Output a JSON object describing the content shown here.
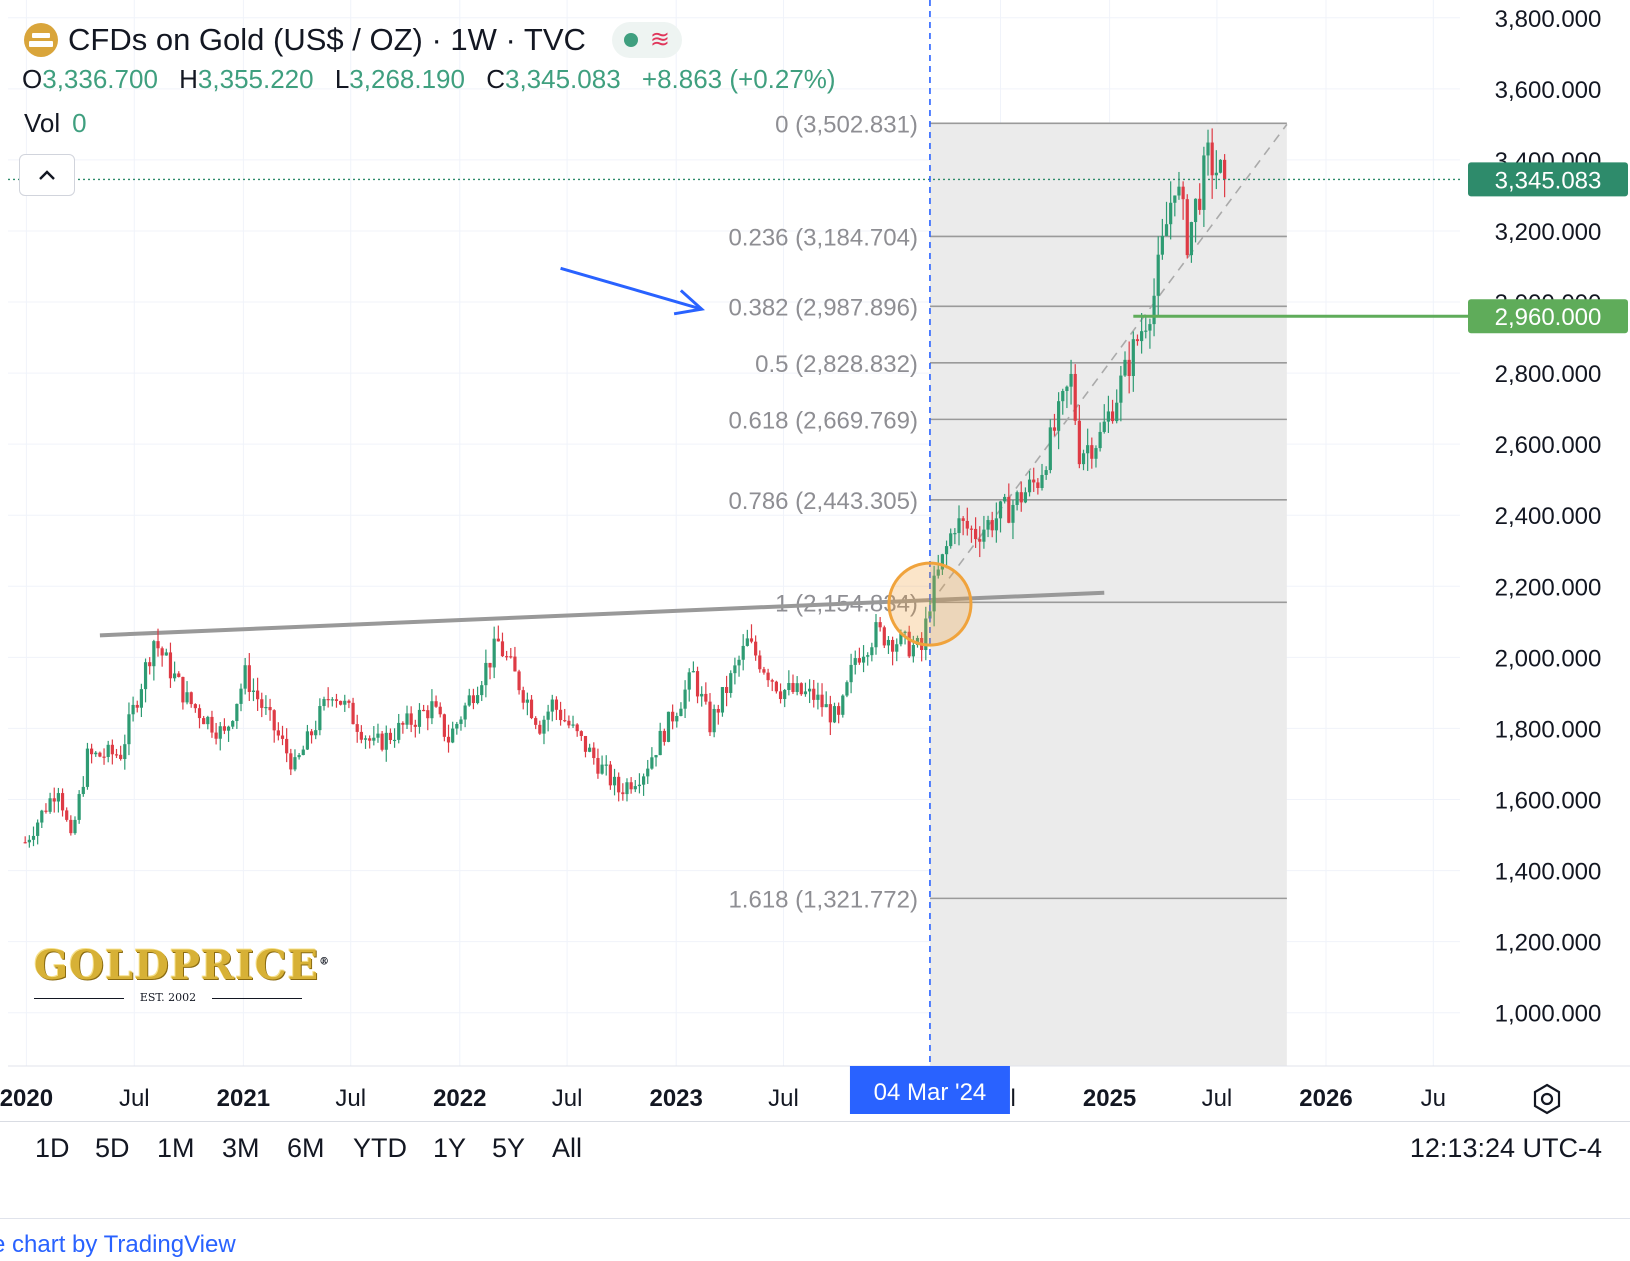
{
  "header": {
    "title": "CFDs on Gold (US$ / OZ) · 1W · TVC",
    "ohlc": [
      {
        "key": "O",
        "value": "3,336.700"
      },
      {
        "key": "H",
        "value": "3,355.220"
      },
      {
        "key": "L",
        "value": "3,268.190"
      },
      {
        "key": "C",
        "value": "3,345.083"
      }
    ],
    "change": "+8.863 (+0.27%)",
    "vol_label": "Vol",
    "vol_value": "0",
    "status_color": "#3f9f7f",
    "icons": [
      "gold-symbol-icon",
      "market-status-dot-icon",
      "wave-icon",
      "chevron-up-icon"
    ]
  },
  "chart_data": {
    "type": "candlestick",
    "timeframe": "1W",
    "xlim": [
      "2019-12-01",
      "2026-08-15"
    ],
    "ylim": [
      850,
      3850
    ],
    "grid": true,
    "y_ticks": [
      1000,
      1200,
      1400,
      1600,
      1800,
      2000,
      2200,
      2400,
      2600,
      2800,
      3000,
      3200,
      3400,
      3600,
      3800
    ],
    "y_tick_labels": [
      "1,000.000",
      "1,200.000",
      "1,400.000",
      "1,600.000",
      "1,800.000",
      "2,000.000",
      "2,200.000",
      "2,400.000",
      "2,600.000",
      "2,800.000",
      "3,000.000",
      "3,200.000",
      "3,400.000",
      "3,600.000",
      "3,800.000"
    ],
    "x_ticks": [
      {
        "date": "2020-01-01",
        "label": "2020",
        "bold": true
      },
      {
        "date": "2020-07-01",
        "label": "Jul",
        "bold": false
      },
      {
        "date": "2021-01-01",
        "label": "2021",
        "bold": true
      },
      {
        "date": "2021-07-01",
        "label": "Jul",
        "bold": false
      },
      {
        "date": "2022-01-01",
        "label": "2022",
        "bold": true
      },
      {
        "date": "2022-07-01",
        "label": "Jul",
        "bold": false
      },
      {
        "date": "2023-01-01",
        "label": "2023",
        "bold": true
      },
      {
        "date": "2023-07-01",
        "label": "Jul",
        "bold": false
      },
      {
        "date": "2024-07-01",
        "label": "Jul",
        "bold": false
      },
      {
        "date": "2025-01-01",
        "label": "2025",
        "bold": true
      },
      {
        "date": "2025-07-01",
        "label": "Jul",
        "bold": false
      },
      {
        "date": "2026-01-01",
        "label": "2026",
        "bold": true
      },
      {
        "date": "2026-07-01",
        "label": "Ju",
        "bold": false
      }
    ],
    "price_path": [
      [
        "2019-12-30",
        1480
      ],
      [
        "2020-02-24",
        1640
      ],
      [
        "2020-03-16",
        1480
      ],
      [
        "2020-04-13",
        1720
      ],
      [
        "2020-06-08",
        1730
      ],
      [
        "2020-08-03",
        2050
      ],
      [
        "2020-09-28",
        1880
      ],
      [
        "2020-11-30",
        1780
      ],
      [
        "2021-01-04",
        1950
      ],
      [
        "2021-03-29",
        1690
      ],
      [
        "2021-05-31",
        1910
      ],
      [
        "2021-08-09",
        1750
      ],
      [
        "2021-11-15",
        1860
      ],
      [
        "2021-12-13",
        1770
      ],
      [
        "2022-03-07",
        2040
      ],
      [
        "2022-05-16",
        1810
      ],
      [
        "2022-06-06",
        1870
      ],
      [
        "2022-09-26",
        1625
      ],
      [
        "2022-11-07",
        1680
      ],
      [
        "2023-01-30",
        1950
      ],
      [
        "2023-02-27",
        1810
      ],
      [
        "2023-05-01",
        2040
      ],
      [
        "2023-06-26",
        1910
      ],
      [
        "2023-08-21",
        1890
      ],
      [
        "2023-10-02",
        1820
      ],
      [
        "2023-10-30",
        2000
      ],
      [
        "2023-12-04",
        2070
      ],
      [
        "2024-02-19",
        2020
      ],
      [
        "2024-03-04",
        2160
      ],
      [
        "2024-04-15",
        2380
      ],
      [
        "2024-05-20",
        2350
      ],
      [
        "2024-07-15",
        2420
      ],
      [
        "2024-09-02",
        2500
      ],
      [
        "2024-10-28",
        2780
      ],
      [
        "2024-11-11",
        2580
      ],
      [
        "2024-12-16",
        2620
      ],
      [
        "2025-01-27",
        2800
      ],
      [
        "2025-03-17",
        3020
      ],
      [
        "2025-04-21",
        3350
      ],
      [
        "2025-05-12",
        3180
      ],
      [
        "2025-06-16",
        3400
      ],
      [
        "2025-07-14",
        3345
      ]
    ],
    "fibonacci": {
      "x_start": "2024-03-04",
      "x_end": "2025-10-27",
      "levels": [
        {
          "label": "0 (3,502.831)",
          "value": 3502.831
        },
        {
          "label": "0.236 (3,184.704)",
          "value": 3184.704
        },
        {
          "label": "0.382 (2,987.896)",
          "value": 2987.896
        },
        {
          "label": "0.5 (2,828.832)",
          "value": 2828.832
        },
        {
          "label": "0.618 (2,669.769)",
          "value": 2669.769
        },
        {
          "label": "0.786 (2,443.305)",
          "value": 2443.305
        },
        {
          "label": "1 (2,154.834)",
          "value": 2154.834
        },
        {
          "label": "1.618 (1,321.772)",
          "value": 1321.772
        }
      ],
      "shade_color": "#ebebeb",
      "line_color": "#9a9a9a"
    },
    "trendline": {
      "x0": "2020-05-04",
      "y0": 2062,
      "x1": "2024-12-23",
      "y1": 2182,
      "color": "#999999"
    },
    "diagonal": {
      "x0": "2024-03-04",
      "y0": 2150,
      "x1": "2025-10-27",
      "y1": 3500
    },
    "support_line": {
      "x0": "2025-02-10",
      "value": 2960.0,
      "label": "2,960.000",
      "color": "#5fac5a"
    },
    "last_price": {
      "value": 3345.083,
      "label": "3,345.083",
      "color": "#2e8b6b"
    },
    "vertical_marker": {
      "date": "2024-03-04",
      "label": "04 Mar '24",
      "color": "#2962ff"
    },
    "circle_highlight": {
      "date": "2024-03-04",
      "value": 2150,
      "color": "#f0a33c"
    },
    "arrow": {
      "x0": "2022-06-20",
      "y0": 3095,
      "x1": "2023-02-13",
      "y1": 2980,
      "color": "#2962ff"
    },
    "up_color": "#2e9b73",
    "down_color": "#de3b45"
  },
  "toolbar": {
    "ranges": [
      "1D",
      "5D",
      "1M",
      "3M",
      "6M",
      "YTD",
      "1Y",
      "5Y",
      "All"
    ],
    "clock": "12:13:24 UTC-4"
  },
  "watermark": {
    "name": "GOLDPRICE",
    "mark": "®",
    "est": "EST. 2002"
  },
  "credit": "e chart by TradingView"
}
